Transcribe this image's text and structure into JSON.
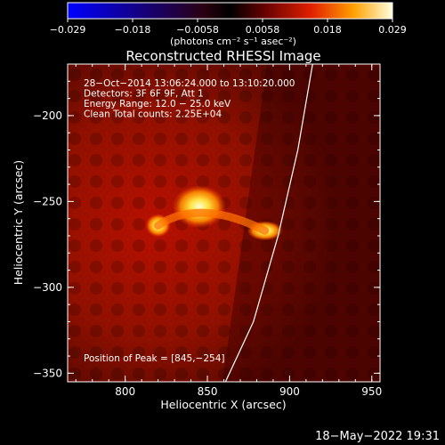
{
  "colorbar": {
    "ticks": [
      "−0.029",
      "−0.018",
      "−0.0058",
      "0.0058",
      "0.018",
      "0.029"
    ],
    "unit_label": "(photons cm⁻² s⁻¹ asec⁻²)",
    "min": -0.029,
    "max": 0.029
  },
  "chart_data": {
    "type": "heatmap",
    "title": "Reconstructed RHESSI Image",
    "xlabel": "Heliocentric X (arcsec)",
    "ylabel": "Heliocentric Y (arcsec)",
    "xlim": [
      765,
      955
    ],
    "ylim": [
      -355,
      -170
    ],
    "x_ticks": [
      800,
      850,
      900,
      950
    ],
    "y_ticks": [
      -200,
      -250,
      -300,
      -350
    ],
    "x_tick_labels": [
      "800",
      "850",
      "900",
      "950"
    ],
    "y_tick_labels": [
      "−200",
      "−250",
      "−300",
      "−350"
    ],
    "info_lines": [
      "28−Oct−2014 13:06:24.000 to 13:10:20.000",
      "Detectors: 3F 6F 9F, Att 1",
      "Energy Range: 12.0 − 25.0 keV",
      "Clean     Total counts: 2.25E+04"
    ],
    "peak_label": "Position of Peak = [845,−254]",
    "peak": [
      845,
      -254
    ],
    "sources": [
      {
        "x": 845,
        "y": -253,
        "value": 0.029
      },
      {
        "x": 820,
        "y": -264,
        "value": 0.02
      },
      {
        "x": 885,
        "y": -267,
        "value": 0.016
      }
    ],
    "limb_curve": [
      [
        914,
        -170
      ],
      [
        905,
        -220
      ],
      [
        893,
        -270
      ],
      [
        878,
        -320
      ],
      [
        861,
        -355
      ]
    ]
  },
  "footer": {
    "timestamp": "18−May−2022 19:31"
  }
}
